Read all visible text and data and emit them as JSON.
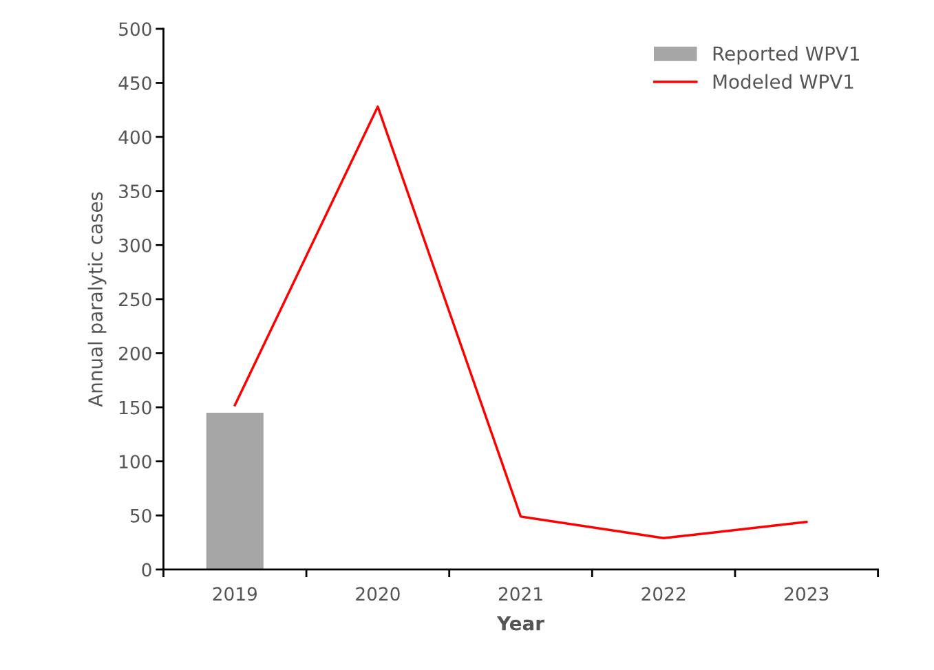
{
  "chart_data": {
    "type": "bar",
    "xlabel": "Year",
    "ylabel": "Annual paralytic cases",
    "categories": [
      "2019",
      "2020",
      "2021",
      "2022",
      "2023"
    ],
    "series": [
      {
        "name": "Reported WPV1",
        "color": "#a6a6a6",
        "values": [
          145,
          null,
          null,
          null,
          null
        ]
      },
      {
        "name": "Modeled WPV1",
        "type": "line",
        "color": "#ff0000",
        "values": [
          152,
          428,
          49,
          29,
          44
        ]
      }
    ],
    "ylim": [
      0,
      500
    ],
    "yticks": [
      0,
      50,
      100,
      150,
      200,
      250,
      300,
      350,
      400,
      450,
      500
    ],
    "grid": false,
    "legend": "top right",
    "marker": "none"
  }
}
